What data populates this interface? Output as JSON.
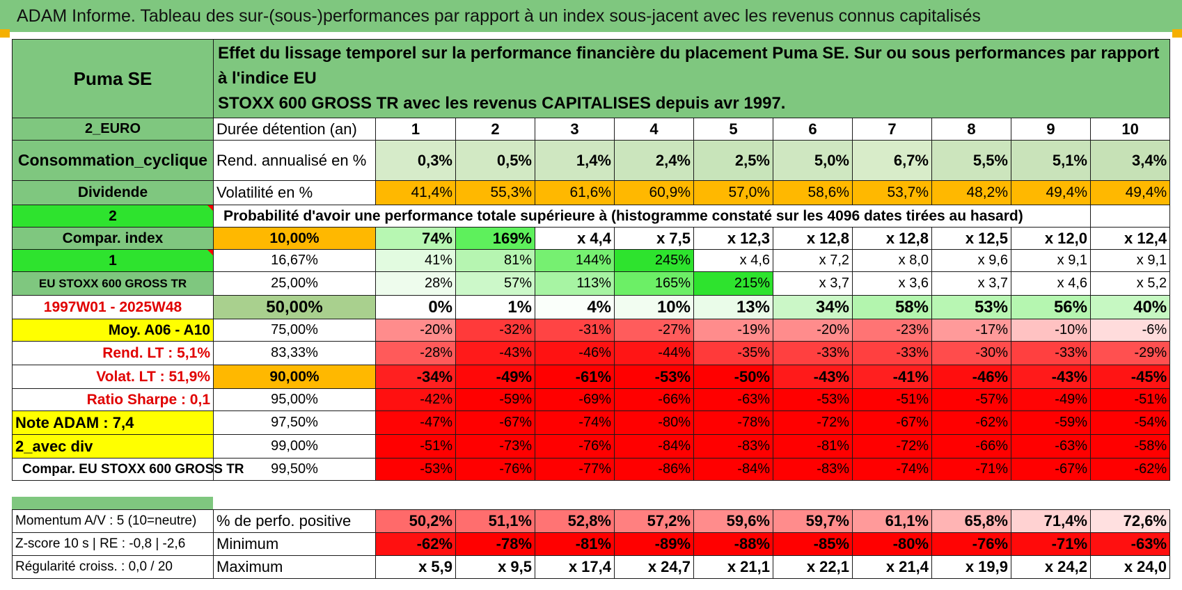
{
  "title": "ADAM Informe. Tableau des sur-(sous-)performances par rapport à un index sous-jacent avec les revenus connus capitalisés",
  "header": {
    "asset_name": "Puma SE",
    "description_line1": "Effet du lissage temporel sur la performance financière du placement Puma SE. Sur ou sous performances par rapport à l'indice EU",
    "description_line2": "STOXX 600 GROSS TR avec les revenus CAPITALISES depuis avr 1997."
  },
  "side": {
    "currency": "2_EURO",
    "sector": "Consommation_cyclique",
    "dividend": "Dividende",
    "flag_2": "2",
    "compar_index": "Compar. index",
    "flag_1": "1",
    "index_name": "EU STOXX 600 GROSS TR",
    "period": "1997W01 - 2025W48",
    "moy": "Moy. A06 - A10",
    "rend_lt": "Rend. LT :    5,1%",
    "volat_lt": "Volat. LT :    51,9%",
    "sharpe": "Ratio Sharpe :     0,1",
    "note": "Note ADAM : 7,4",
    "avec_div": "2_avec div",
    "compar_full": "Compar. EU STOXX 600 GROSS TR",
    "momentum": "Momentum A/V : 5 (10=neutre)",
    "zscore": "Z-score 10 s | RE : -0,8 | -2,6",
    "regularite": "Régularité croiss. : 0,0 / 20"
  },
  "labels": {
    "duree": "Durée détention (an)",
    "rend": "Rend. annualisé en %",
    "vol": "Volatilité en %",
    "proba": "Probabilité d'avoir une performance totale supérieure à (histogramme constaté sur les 4096 dates tirées au hasard)",
    "pos": "% de perfo. positive",
    "min": "Minimum",
    "max": "Maximum"
  },
  "years": [
    "1",
    "2",
    "3",
    "4",
    "5",
    "6",
    "7",
    "8",
    "9",
    "10"
  ],
  "rend": [
    "0,3%",
    "0,5%",
    "1,4%",
    "2,4%",
    "2,5%",
    "5,0%",
    "6,7%",
    "5,5%",
    "5,1%",
    "3,4%"
  ],
  "vol": [
    "41,4%",
    "55,3%",
    "61,6%",
    "60,9%",
    "57,0%",
    "58,6%",
    "53,7%",
    "48,2%",
    "49,4%",
    "49,4%"
  ],
  "prob_rows": [
    {
      "pct": "10,00%",
      "vals": [
        "74%",
        "169%",
        "x 4,4",
        "x 7,5",
        "x 12,3",
        "x 12,8",
        "x 12,8",
        "x 12,5",
        "x 12,0",
        "x 12,4"
      ]
    },
    {
      "pct": "16,67%",
      "vals": [
        "41%",
        "81%",
        "144%",
        "245%",
        "x 4,6",
        "x 7,2",
        "x 8,0",
        "x 9,6",
        "x 9,1",
        "x 9,1"
      ]
    },
    {
      "pct": "25,00%",
      "vals": [
        "28%",
        "57%",
        "113%",
        "165%",
        "215%",
        "x 3,7",
        "x 3,6",
        "x 3,7",
        "x 4,6",
        "x 5,2"
      ]
    },
    {
      "pct": "50,00%",
      "vals": [
        "0%",
        "1%",
        "4%",
        "10%",
        "13%",
        "34%",
        "58%",
        "53%",
        "56%",
        "40%"
      ]
    },
    {
      "pct": "75,00%",
      "vals": [
        "-20%",
        "-32%",
        "-31%",
        "-27%",
        "-19%",
        "-20%",
        "-23%",
        "-17%",
        "-10%",
        "-6%"
      ]
    },
    {
      "pct": "83,33%",
      "vals": [
        "-28%",
        "-43%",
        "-46%",
        "-44%",
        "-35%",
        "-33%",
        "-33%",
        "-30%",
        "-33%",
        "-29%"
      ]
    },
    {
      "pct": "90,00%",
      "vals": [
        "-34%",
        "-49%",
        "-61%",
        "-53%",
        "-50%",
        "-43%",
        "-41%",
        "-46%",
        "-43%",
        "-45%"
      ]
    },
    {
      "pct": "95,00%",
      "vals": [
        "-42%",
        "-59%",
        "-69%",
        "-66%",
        "-63%",
        "-53%",
        "-51%",
        "-57%",
        "-49%",
        "-51%"
      ]
    },
    {
      "pct": "97,50%",
      "vals": [
        "-47%",
        "-67%",
        "-74%",
        "-80%",
        "-78%",
        "-72%",
        "-67%",
        "-62%",
        "-59%",
        "-54%"
      ]
    },
    {
      "pct": "99,00%",
      "vals": [
        "-51%",
        "-73%",
        "-76%",
        "-84%",
        "-83%",
        "-81%",
        "-72%",
        "-66%",
        "-63%",
        "-58%"
      ]
    },
    {
      "pct": "99,50%",
      "vals": [
        "-53%",
        "-76%",
        "-77%",
        "-86%",
        "-84%",
        "-83%",
        "-74%",
        "-71%",
        "-67%",
        "-62%"
      ]
    }
  ],
  "pos": [
    "50,2%",
    "51,1%",
    "52,8%",
    "57,2%",
    "59,6%",
    "59,7%",
    "61,1%",
    "65,8%",
    "71,4%",
    "72,6%"
  ],
  "min": [
    "-62%",
    "-78%",
    "-81%",
    "-89%",
    "-88%",
    "-85%",
    "-80%",
    "-76%",
    "-71%",
    "-63%"
  ],
  "max": [
    "x 5,9",
    "x 9,5",
    "x 17,4",
    "x 24,7",
    "x 21,1",
    "x 22,1",
    "x 21,4",
    "x 19,9",
    "x 24,2",
    "x 24,0"
  ],
  "colors": {
    "header_green": "#7fc77f",
    "lime": "#2ee32e",
    "yellow": "#ffff00",
    "orange": "#ffb800",
    "red_text": "#e00000"
  }
}
